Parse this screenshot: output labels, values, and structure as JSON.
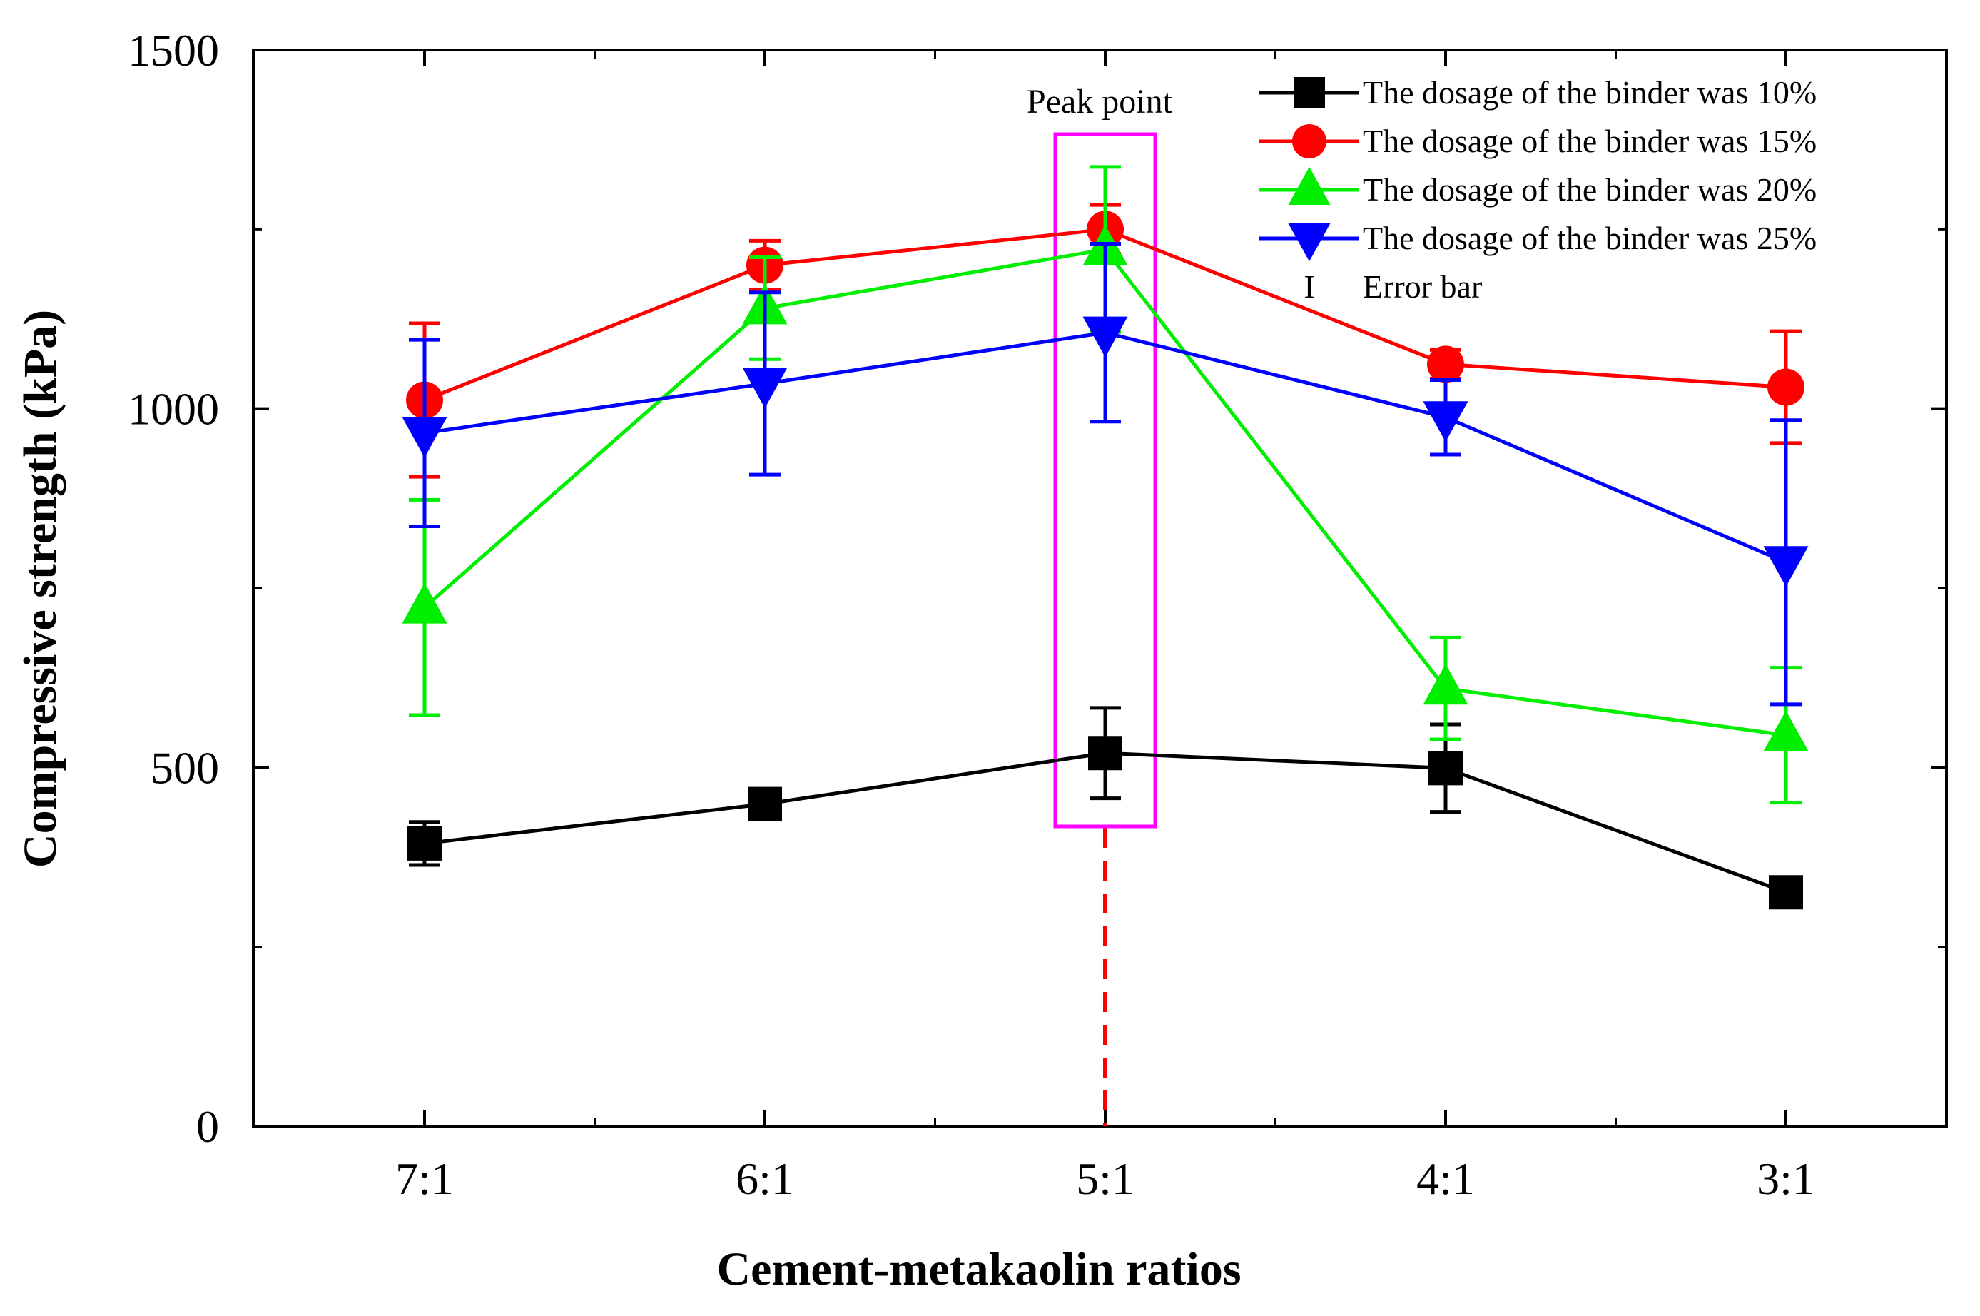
{
  "chart_data": {
    "type": "line",
    "title": "",
    "xlabel": "Cement-metakaolin ratios",
    "ylabel": "Compressive strength (kPa)",
    "categories": [
      "7:1",
      "6:1",
      "5:1",
      "4:1",
      "3:1"
    ],
    "ylim": [
      0,
      1500
    ],
    "yticks": [
      0,
      500,
      1000,
      1500
    ],
    "grid": false,
    "legend_position": "top-right",
    "series": [
      {
        "name": "The dosage of the binder was 10%",
        "color": "#000000",
        "marker": "square",
        "values": [
          394,
          449,
          520,
          499,
          326
        ],
        "error": [
          30,
          10,
          63,
          61,
          10
        ]
      },
      {
        "name": "The dosage of the binder was 15%",
        "color": "#ff0000",
        "marker": "circle",
        "values": [
          1012,
          1200,
          1250,
          1062,
          1030
        ],
        "error": [
          107,
          34,
          34,
          20,
          78
        ]
      },
      {
        "name": "The dosage of the binder was 20%",
        "color": "#00ee00",
        "marker": "triangle-up",
        "values": [
          723,
          1140,
          1222,
          610,
          545
        ],
        "error": [
          150,
          71,
          115,
          71,
          94
        ]
      },
      {
        "name": "The dosage of the binder was 25%",
        "color": "#0000ff",
        "marker": "triangle-down",
        "values": [
          966,
          1035,
          1106,
          988,
          786
        ],
        "error": [
          130,
          127,
          124,
          52,
          198
        ]
      }
    ],
    "legend_extra": {
      "symbol": "I",
      "label": "Error bar"
    },
    "annotations": [
      {
        "text": "Peak point",
        "category": "5:1",
        "box_color": "#ff00ff",
        "line_color": "#ff0000"
      }
    ]
  }
}
